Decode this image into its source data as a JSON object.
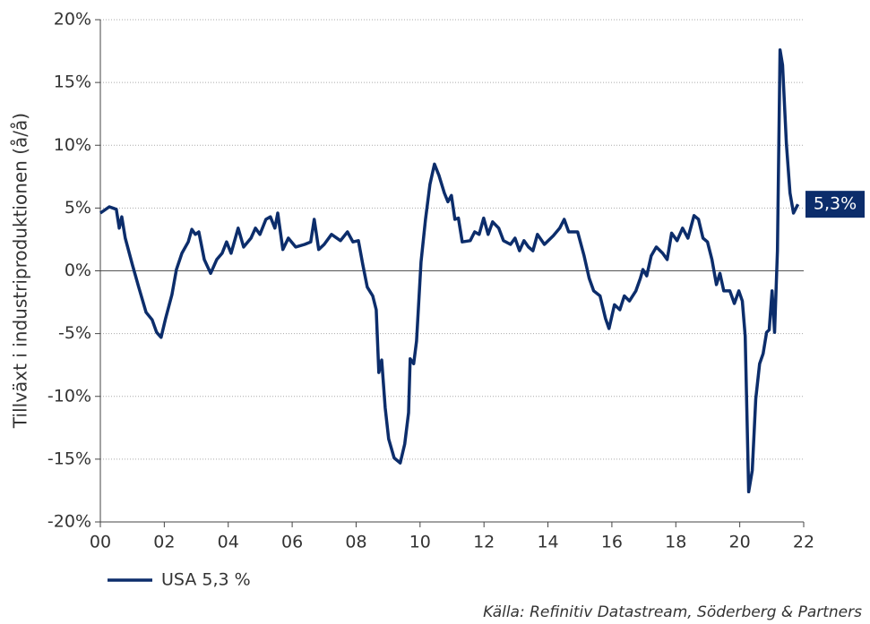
{
  "chart_data": {
    "type": "line",
    "ylabel": "Tillväxt i industriproduktionen (å/å)",
    "source": "Källa: Refinitiv Datastream, Söderberg & Partners",
    "xlim": [
      0,
      22
    ],
    "xticks": [
      {
        "value": 0,
        "label": "00"
      },
      {
        "value": 2,
        "label": "02"
      },
      {
        "value": 4,
        "label": "04"
      },
      {
        "value": 6,
        "label": "06"
      },
      {
        "value": 8,
        "label": "08"
      },
      10,
      12,
      14,
      16,
      18,
      20,
      22
    ],
    "ylim": [
      -20,
      20
    ],
    "yticks": [
      {
        "value": -20,
        "label": "-20%"
      },
      {
        "value": -15,
        "label": "-15%"
      },
      {
        "value": -10,
        "label": "-10%"
      },
      {
        "value": -5,
        "label": "-5%"
      },
      {
        "value": 0,
        "label": "0%"
      },
      {
        "value": 5,
        "label": "5%"
      },
      {
        "value": 10,
        "label": "10%"
      },
      {
        "value": 15,
        "label": "15%"
      },
      {
        "value": 20,
        "label": "20%"
      }
    ],
    "grid": true,
    "annotations": [
      {
        "text": "5,3%"
      }
    ],
    "x": [
      0,
      0.28,
      0.5,
      0.59,
      0.67,
      0.78,
      1.0,
      1.2,
      1.43,
      1.62,
      1.76,
      1.9,
      2.04,
      2.24,
      2.38,
      2.55,
      2.75,
      2.86,
      2.97,
      3.08,
      3.25,
      3.45,
      3.64,
      3.81,
      3.95,
      4.09,
      4.31,
      4.48,
      4.71,
      4.85,
      4.99,
      5.18,
      5.32,
      5.46,
      5.55,
      5.71,
      5.88,
      6.11,
      6.39,
      6.58,
      6.69,
      6.83,
      7.0,
      7.23,
      7.51,
      7.73,
      7.9,
      8.07,
      8.21,
      8.35,
      8.52,
      8.63,
      8.71,
      8.8,
      8.91,
      9.02,
      9.19,
      9.38,
      9.52,
      9.64,
      9.69,
      9.8,
      9.89,
      10.03,
      10.17,
      10.31,
      10.45,
      10.59,
      10.76,
      10.87,
      10.98,
      11.09,
      11.2,
      11.32,
      11.57,
      11.71,
      11.85,
      11.99,
      12.13,
      12.27,
      12.46,
      12.61,
      12.83,
      12.97,
      13.11,
      13.25,
      13.39,
      13.53,
      13.67,
      13.89,
      14.17,
      14.37,
      14.51,
      14.65,
      14.93,
      15.13,
      15.29,
      15.43,
      15.63,
      15.8,
      15.91,
      16.08,
      16.25,
      16.39,
      16.55,
      16.75,
      16.89,
      16.97,
      17.09,
      17.23,
      17.39,
      17.59,
      17.73,
      17.87,
      18.04,
      18.21,
      18.38,
      18.57,
      18.71,
      18.85,
      18.99,
      19.13,
      19.27,
      19.38,
      19.5,
      19.69,
      19.83,
      19.97,
      20.08,
      20.17,
      20.28,
      20.39,
      20.5,
      20.62,
      20.73,
      20.84,
      20.92,
      21.01,
      21.09,
      21.18,
      21.26,
      21.34,
      21.46,
      21.57,
      21.68,
      21.82
    ],
    "series": [
      {
        "name": "USA 5,3 %",
        "color": "#0c2d6b",
        "values": [
          4.6,
          5.1,
          4.9,
          3.4,
          4.3,
          2.6,
          0.5,
          -1.3,
          -3.3,
          -3.9,
          -4.9,
          -5.3,
          -3.8,
          -1.9,
          0.1,
          1.4,
          2.3,
          3.3,
          2.9,
          3.1,
          0.9,
          -0.2,
          0.9,
          1.4,
          2.3,
          1.4,
          3.4,
          1.9,
          2.6,
          3.4,
          2.9,
          4.1,
          4.3,
          3.4,
          4.6,
          1.7,
          2.6,
          1.9,
          2.1,
          2.3,
          4.1,
          1.7,
          2.1,
          2.9,
          2.4,
          3.1,
          2.3,
          2.4,
          0.5,
          -1.3,
          -2.0,
          -3.1,
          -8.1,
          -7.1,
          -10.9,
          -13.4,
          -14.9,
          -15.3,
          -13.8,
          -11.3,
          -7.0,
          -7.4,
          -5.6,
          0.7,
          4.1,
          6.9,
          8.5,
          7.6,
          6.2,
          5.5,
          6.0,
          4.1,
          4.2,
          2.3,
          2.4,
          3.1,
          2.9,
          4.2,
          2.9,
          3.9,
          3.4,
          2.4,
          2.1,
          2.6,
          1.6,
          2.4,
          1.9,
          1.6,
          2.9,
          2.1,
          2.8,
          3.4,
          4.1,
          3.1,
          3.1,
          1.2,
          -0.6,
          -1.6,
          -2.0,
          -3.8,
          -4.6,
          -2.7,
          -3.1,
          -2.0,
          -2.4,
          -1.6,
          -0.6,
          0.1,
          -0.4,
          1.2,
          1.9,
          1.4,
          0.9,
          3.0,
          2.4,
          3.4,
          2.6,
          4.4,
          4.1,
          2.6,
          2.3,
          0.9,
          -1.1,
          -0.2,
          -1.6,
          -1.6,
          -2.6,
          -1.6,
          -2.4,
          -5.2,
          -17.6,
          -15.9,
          -10.2,
          -7.4,
          -6.6,
          -4.9,
          -4.7,
          -1.6,
          -4.9,
          1.6,
          17.6,
          16.4,
          10.1,
          6.2,
          4.6,
          5.3
        ]
      }
    ]
  }
}
